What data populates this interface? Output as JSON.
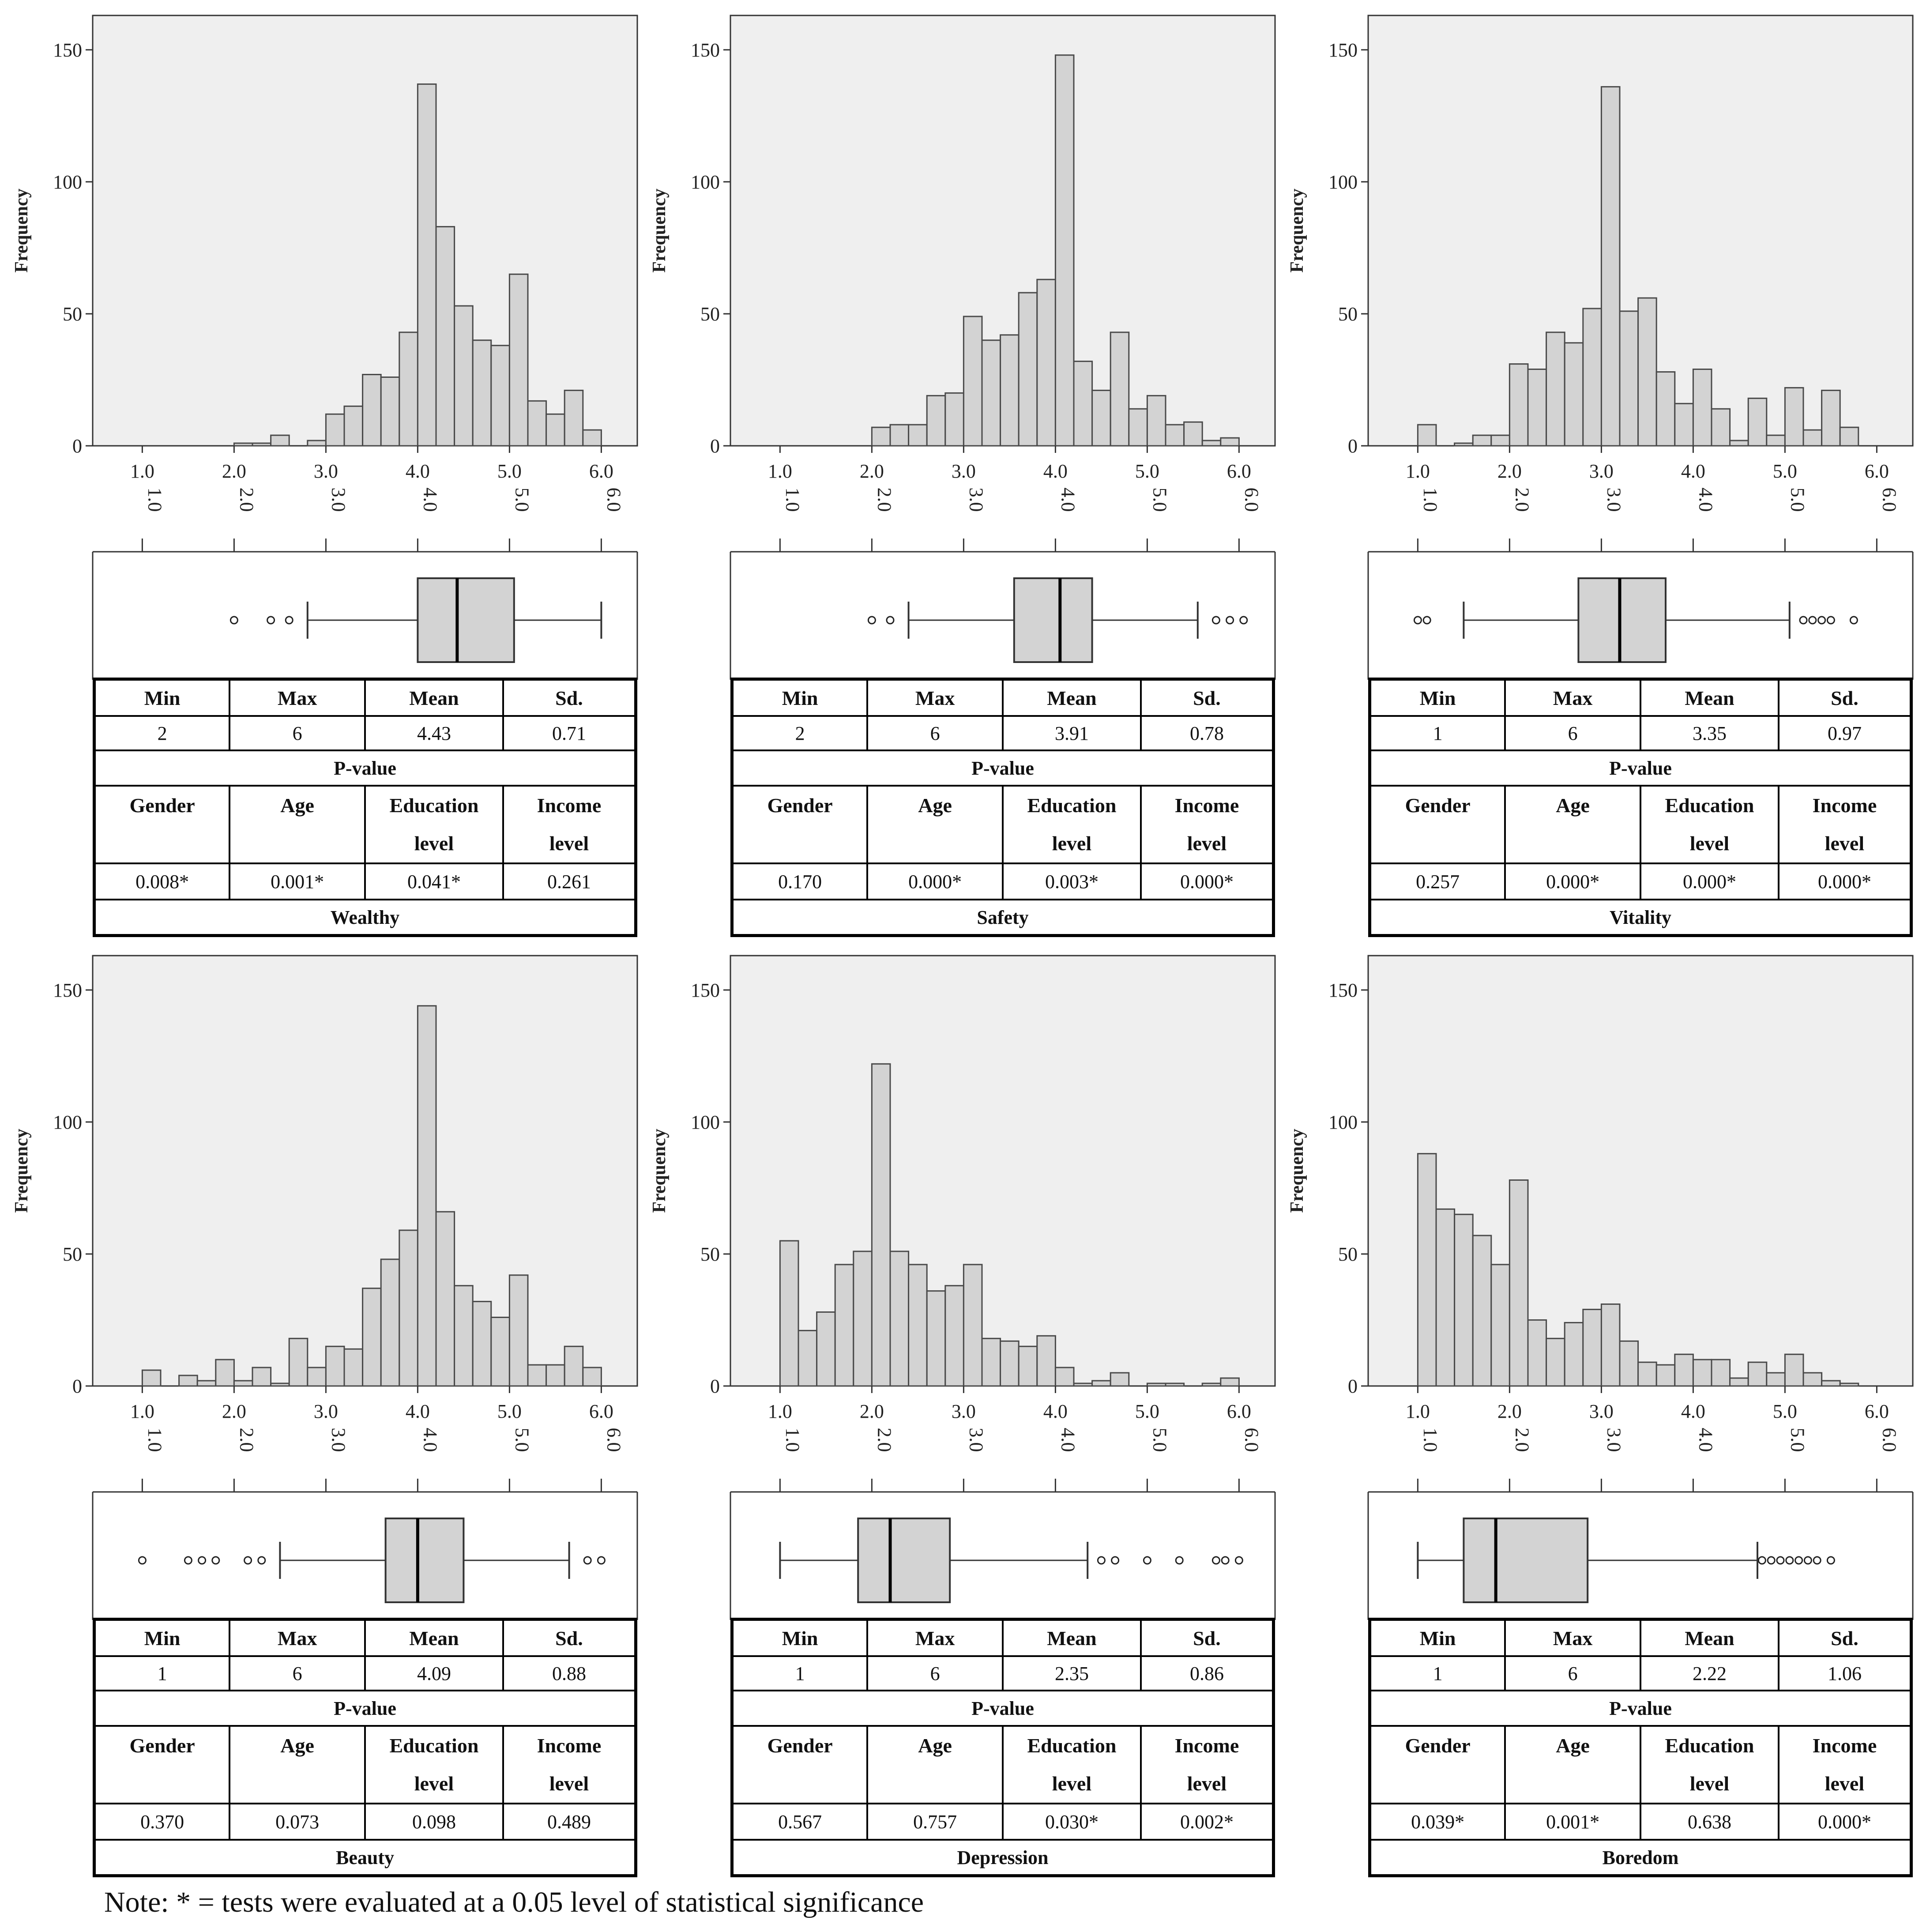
{
  "colors": {
    "plot_bg": "#efefef",
    "bar_fill": "#d3d3d3",
    "bar_stroke": "#4a4a4a",
    "axis": "#333333"
  },
  "chart_data": [
    {
      "type": "bar",
      "variable": "Wealthy",
      "ylabel": "Frequency",
      "yticks": [
        "0",
        "50",
        "100",
        "150"
      ],
      "xticks": [
        "1.0",
        "2.0",
        "3.0",
        "4.0",
        "5.0",
        "6.0"
      ],
      "xlim": [
        0.7,
        6.2
      ],
      "ylim": [
        0,
        158
      ],
      "bin_width": 0.2,
      "bins_start": [
        2.0,
        2.2,
        2.4,
        2.6,
        2.8,
        3.0,
        3.2,
        3.4,
        3.6,
        3.8,
        4.0,
        4.2,
        4.4,
        4.6,
        4.8,
        5.0,
        5.2,
        5.4,
        5.6,
        5.8
      ],
      "values": [
        1,
        1,
        4,
        0,
        2,
        12,
        15,
        27,
        26,
        43,
        137,
        83,
        53,
        40,
        38,
        65,
        17,
        12,
        21,
        6
      ],
      "boxplot": {
        "whisker_low": 2.8,
        "q1": 4.0,
        "median": 4.43,
        "q3": 5.05,
        "whisker_high": 6.0,
        "outliers": [
          2.0,
          2.4,
          2.6
        ]
      },
      "stats": {
        "min": "2",
        "max": "6",
        "mean": "4.43",
        "sd": "0.71"
      },
      "pvalues": {
        "gender": "0.008*",
        "age": "0.001*",
        "education": "0.041*",
        "income": "0.261"
      }
    },
    {
      "type": "bar",
      "variable": "Safety",
      "ylabel": "Frequency",
      "yticks": [
        "0",
        "50",
        "100",
        "150"
      ],
      "xticks": [
        "1.0",
        "2.0",
        "3.0",
        "4.0",
        "5.0",
        "6.0"
      ],
      "xlim": [
        0.7,
        6.2
      ],
      "ylim": [
        0,
        158
      ],
      "bin_width": 0.2,
      "bins_start": [
        2.0,
        2.2,
        2.4,
        2.6,
        2.8,
        3.0,
        3.2,
        3.4,
        3.6,
        3.8,
        4.0,
        4.2,
        4.4,
        4.6,
        4.8,
        5.0,
        5.2,
        5.4,
        5.6,
        5.8
      ],
      "values": [
        7,
        8,
        8,
        19,
        20,
        49,
        40,
        42,
        58,
        63,
        148,
        32,
        21,
        43,
        14,
        19,
        8,
        9,
        2,
        3
      ],
      "boxplot": {
        "whisker_low": 2.4,
        "q1": 3.55,
        "median": 4.05,
        "q3": 4.4,
        "whisker_high": 5.55,
        "outliers": [
          2.0,
          2.2,
          5.75,
          5.9,
          6.05
        ]
      },
      "stats": {
        "min": "2",
        "max": "6",
        "mean": "3.91",
        "sd": "0.78"
      },
      "pvalues": {
        "gender": "0.170",
        "age": "0.000*",
        "education": "0.003*",
        "income": "0.000*"
      }
    },
    {
      "type": "bar",
      "variable": "Vitality",
      "ylabel": "Frequency",
      "yticks": [
        "0",
        "50",
        "100",
        "150"
      ],
      "xticks": [
        "1.0",
        "2.0",
        "3.0",
        "4.0",
        "5.0",
        "6.0"
      ],
      "xlim": [
        0.7,
        6.2
      ],
      "ylim": [
        0,
        158
      ],
      "bin_width": 0.2,
      "bins_start": [
        1.0,
        1.2,
        1.4,
        1.6,
        1.8,
        2.0,
        2.2,
        2.4,
        2.6,
        2.8,
        3.0,
        3.2,
        3.4,
        3.6,
        3.8,
        4.0,
        4.2,
        4.4,
        4.6,
        4.8,
        5.0,
        5.2,
        5.4,
        5.6
      ],
      "values": [
        8,
        0,
        1,
        4,
        4,
        31,
        29,
        43,
        39,
        52,
        136,
        51,
        56,
        28,
        16,
        29,
        14,
        2,
        18,
        4,
        22,
        6,
        21,
        7
      ],
      "boxplot": {
        "whisker_low": 1.5,
        "q1": 2.75,
        "median": 3.2,
        "q3": 3.7,
        "whisker_high": 5.05,
        "outliers": [
          1.0,
          1.1,
          5.2,
          5.3,
          5.4,
          5.5,
          5.75
        ]
      },
      "stats": {
        "min": "1",
        "max": "6",
        "mean": "3.35",
        "sd": "0.97"
      },
      "pvalues": {
        "gender": "0.257",
        "age": "0.000*",
        "education": "0.000*",
        "income": "0.000*"
      }
    },
    {
      "type": "bar",
      "variable": "Beauty",
      "ylabel": "Frequency",
      "yticks": [
        "0",
        "50",
        "100",
        "150"
      ],
      "xticks": [
        "1.0",
        "2.0",
        "3.0",
        "4.0",
        "5.0",
        "6.0"
      ],
      "xlim": [
        0.7,
        6.2
      ],
      "ylim": [
        0,
        158
      ],
      "bin_width": 0.2,
      "bins_start": [
        1.0,
        1.2,
        1.4,
        1.6,
        1.8,
        2.0,
        2.2,
        2.4,
        2.6,
        2.8,
        3.0,
        3.2,
        3.4,
        3.6,
        3.8,
        4.0,
        4.2,
        4.4,
        4.6,
        4.8,
        5.0,
        5.2,
        5.4,
        5.6,
        5.8
      ],
      "values": [
        6,
        0,
        4,
        2,
        10,
        2,
        7,
        1,
        18,
        7,
        15,
        14,
        37,
        48,
        59,
        144,
        66,
        38,
        32,
        26,
        42,
        8,
        8,
        15,
        7
      ],
      "boxplot": {
        "whisker_low": 2.5,
        "q1": 3.65,
        "median": 4.0,
        "q3": 4.5,
        "whisker_high": 5.65,
        "outliers": [
          1.0,
          1.5,
          1.65,
          1.8,
          2.15,
          2.3,
          5.85,
          6.0
        ]
      },
      "stats": {
        "min": "1",
        "max": "6",
        "mean": "4.09",
        "sd": "0.88"
      },
      "pvalues": {
        "gender": "0.370",
        "age": "0.073",
        "education": "0.098",
        "income": "0.489"
      }
    },
    {
      "type": "bar",
      "variable": "Depression",
      "ylabel": "Frequency",
      "yticks": [
        "0",
        "50",
        "100",
        "150"
      ],
      "xticks": [
        "1.0",
        "2.0",
        "3.0",
        "4.0",
        "5.0",
        "6.0"
      ],
      "xlim": [
        0.7,
        6.2
      ],
      "ylim": [
        0,
        158
      ],
      "bin_width": 0.2,
      "bins_start": [
        1.0,
        1.2,
        1.4,
        1.6,
        1.8,
        2.0,
        2.2,
        2.4,
        2.6,
        2.8,
        3.0,
        3.2,
        3.4,
        3.6,
        3.8,
        4.0,
        4.2,
        4.4,
        4.6,
        4.8,
        5.0,
        5.2,
        5.4,
        5.6,
        5.8
      ],
      "values": [
        55,
        21,
        28,
        46,
        51,
        122,
        51,
        46,
        36,
        38,
        46,
        18,
        17,
        15,
        19,
        7,
        1,
        2,
        5,
        0,
        1,
        1,
        0,
        1,
        3
      ],
      "boxplot": {
        "whisker_low": 1.0,
        "q1": 1.85,
        "median": 2.2,
        "q3": 2.85,
        "whisker_high": 4.35,
        "outliers": [
          4.5,
          4.65,
          5.0,
          5.35,
          5.75,
          5.85,
          6.0
        ]
      },
      "stats": {
        "min": "1",
        "max": "6",
        "mean": "2.35",
        "sd": "0.86"
      },
      "pvalues": {
        "gender": "0.567",
        "age": "0.757",
        "education": "0.030*",
        "income": "0.002*"
      }
    },
    {
      "type": "bar",
      "variable": "Boredom",
      "ylabel": "Frequency",
      "yticks": [
        "0",
        "50",
        "100",
        "150"
      ],
      "xticks": [
        "1.0",
        "2.0",
        "3.0",
        "4.0",
        "5.0",
        "6.0"
      ],
      "xlim": [
        0.7,
        6.2
      ],
      "ylim": [
        0,
        158
      ],
      "bin_width": 0.2,
      "bins_start": [
        1.0,
        1.2,
        1.4,
        1.6,
        1.8,
        2.0,
        2.2,
        2.4,
        2.6,
        2.8,
        3.0,
        3.2,
        3.4,
        3.6,
        3.8,
        4.0,
        4.2,
        4.4,
        4.6,
        4.8,
        5.0,
        5.2,
        5.4,
        5.6
      ],
      "values": [
        88,
        67,
        65,
        57,
        46,
        78,
        25,
        18,
        24,
        29,
        31,
        17,
        9,
        8,
        12,
        10,
        10,
        3,
        9,
        5,
        12,
        5,
        2,
        1
      ],
      "boxplot": {
        "whisker_low": 1.0,
        "q1": 1.5,
        "median": 1.85,
        "q3": 2.85,
        "whisker_high": 4.7,
        "outliers": [
          4.75,
          4.85,
          4.95,
          5.05,
          5.15,
          5.25,
          5.35,
          5.5
        ]
      },
      "stats": {
        "min": "1",
        "max": "6",
        "mean": "2.22",
        "sd": "1.06"
      },
      "pvalues": {
        "gender": "0.039*",
        "age": "0.001*",
        "education": "0.638",
        "income": "0.000*"
      }
    }
  ],
  "table_labels": {
    "min": "Min",
    "max": "Max",
    "mean": "Mean",
    "sd": "Sd.",
    "pvalue": "P-value",
    "gender": "Gender",
    "age": "Age",
    "education_l1": "Education",
    "education_l2": "level",
    "income_l1": "Income",
    "income_l2": "level"
  },
  "note": "Note: * = tests were evaluated at a 0.05 level of statistical significance"
}
